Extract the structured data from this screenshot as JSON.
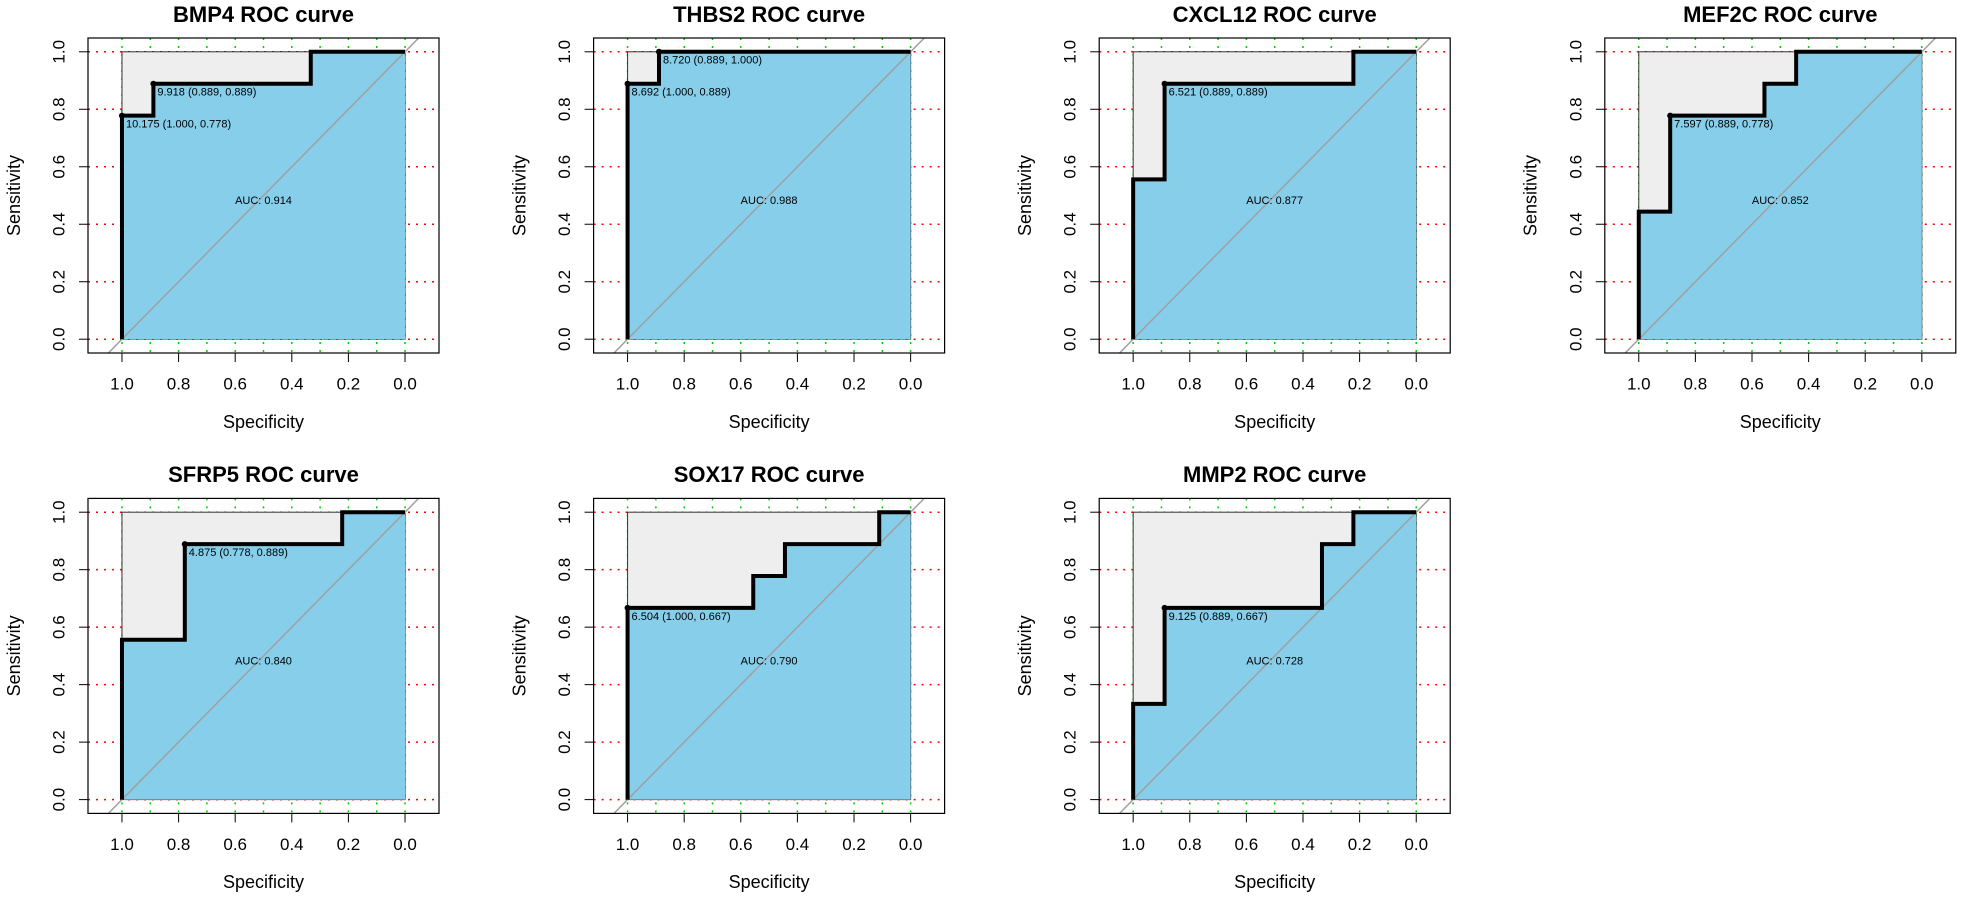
{
  "chart_data": [
    {
      "type": "roc",
      "title": "BMP4 ROC curve",
      "xlabel": "Specificity",
      "ylabel": "Sensitivity",
      "x": [
        1,
        1,
        0.889,
        0.889,
        0.333,
        0.333,
        0
      ],
      "values": [
        0,
        0.778,
        0.778,
        0.889,
        0.889,
        1,
        1
      ],
      "best_points": [
        {
          "x": 1,
          "y": 0.778,
          "label": "10.175 (1.000, 0.778)"
        },
        {
          "x": 0.889,
          "y": 0.889,
          "label": "9.918 (0.889, 0.889)"
        }
      ],
      "auc_label": "AUC: 0.914"
    },
    {
      "type": "roc",
      "title": "THBS2 ROC curve",
      "xlabel": "Specificity",
      "ylabel": "Sensitivity",
      "x": [
        1,
        1,
        0.889,
        0.889,
        0
      ],
      "values": [
        0,
        0.889,
        0.889,
        1,
        1
      ],
      "best_points": [
        {
          "x": 1,
          "y": 0.889,
          "label": "8.692 (1.000, 0.889)"
        },
        {
          "x": 0.889,
          "y": 1,
          "label": "8.720 (0.889, 1.000)"
        }
      ],
      "auc_label": "AUC: 0.988"
    },
    {
      "type": "roc",
      "title": "CXCL12 ROC curve",
      "xlabel": "Specificity",
      "ylabel": "Sensitivity",
      "x": [
        1,
        1,
        0.889,
        0.889,
        0.222,
        0.222,
        0
      ],
      "values": [
        0,
        0.556,
        0.556,
        0.889,
        0.889,
        1,
        1
      ],
      "best_points": [
        {
          "x": 0.889,
          "y": 0.889,
          "label": "6.521 (0.889, 0.889)"
        }
      ],
      "auc_label": "AUC: 0.877"
    },
    {
      "type": "roc",
      "title": "MEF2C ROC curve",
      "xlabel": "Specificity",
      "ylabel": "Sensitivity",
      "x": [
        1,
        1,
        0.889,
        0.889,
        0.556,
        0.556,
        0.444,
        0.444,
        0
      ],
      "values": [
        0,
        0.444,
        0.444,
        0.778,
        0.778,
        0.889,
        0.889,
        1,
        1
      ],
      "best_points": [
        {
          "x": 0.889,
          "y": 0.778,
          "label": "7.597 (0.889, 0.778)"
        }
      ],
      "auc_label": "AUC: 0.852"
    },
    {
      "type": "roc",
      "title": "SFRP5 ROC curve",
      "xlabel": "Specificity",
      "ylabel": "Sensitivity",
      "x": [
        1,
        1,
        0.778,
        0.778,
        0.222,
        0.222,
        0
      ],
      "values": [
        0,
        0.556,
        0.556,
        0.889,
        0.889,
        1,
        1
      ],
      "best_points": [
        {
          "x": 0.778,
          "y": 0.889,
          "label": "4.875 (0.778, 0.889)"
        }
      ],
      "auc_label": "AUC: 0.840"
    },
    {
      "type": "roc",
      "title": "SOX17 ROC curve",
      "xlabel": "Specificity",
      "ylabel": "Sensitivity",
      "x": [
        1,
        1,
        0.556,
        0.556,
        0.444,
        0.444,
        0.111,
        0.111,
        0
      ],
      "values": [
        0,
        0.667,
        0.667,
        0.778,
        0.778,
        0.889,
        0.889,
        1,
        1
      ],
      "best_points": [
        {
          "x": 1,
          "y": 0.667,
          "label": "6.504 (1.000, 0.667)"
        }
      ],
      "auc_label": "AUC: 0.790"
    },
    {
      "type": "roc",
      "title": "MMP2 ROC curve",
      "xlabel": "Specificity",
      "ylabel": "Sensitivity",
      "x": [
        1,
        1,
        0.889,
        0.889,
        0.333,
        0.333,
        0.222,
        0.222,
        0
      ],
      "values": [
        0,
        0.333,
        0.333,
        0.667,
        0.667,
        0.889,
        0.889,
        1,
        1
      ],
      "best_points": [
        {
          "x": 0.889,
          "y": 0.667,
          "label": "9.125 (0.889, 0.667)"
        }
      ],
      "auc_label": "AUC: 0.728"
    }
  ],
  "style": {
    "xlim": [
      1.12,
      -0.12
    ],
    "ylim": [
      -0.048,
      1.048
    ],
    "xticks": [
      {
        "value": 1,
        "label": "1.0"
      },
      0.8,
      0.6,
      0.4,
      0.2,
      {
        "value": 0,
        "label": "0.0"
      }
    ],
    "yticks": [
      {
        "value": 0,
        "label": "0.0"
      },
      0.2,
      0.4,
      0.6,
      0.8,
      {
        "value": 1,
        "label": "1.0"
      }
    ],
    "x_grid": [
      1,
      0.9,
      0.8,
      0.7,
      0.6,
      0.5,
      0.4,
      0.3,
      0.2,
      0.1,
      0
    ],
    "x_grid_color": "#00cd00",
    "y_grid_color": "#ff0000",
    "line_color": "#000000",
    "auc_polygon_color": "#87ceeb",
    "max_auc_polygon_color": "#eeeeee",
    "diagonal_color": "#a0a0a0"
  }
}
